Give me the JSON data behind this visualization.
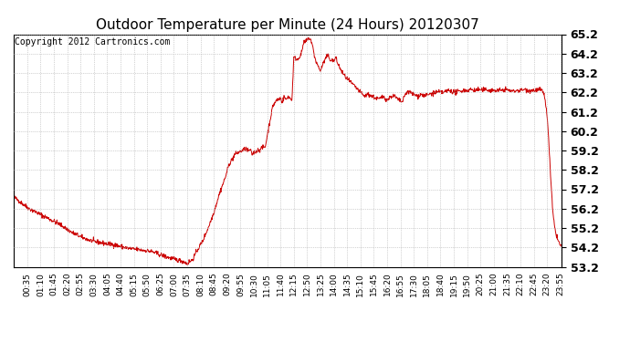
{
  "title": "Outdoor Temperature per Minute (24 Hours) 20120307",
  "copyright_text": "Copyright 2012 Cartronics.com",
  "line_color": "#cc0000",
  "background_color": "#ffffff",
  "plot_background": "#ffffff",
  "ylim": [
    53.2,
    65.2
  ],
  "yticks": [
    53.2,
    54.2,
    55.2,
    56.2,
    57.2,
    58.2,
    59.2,
    60.2,
    61.2,
    62.2,
    63.2,
    64.2,
    65.2
  ],
  "xtick_labels": [
    "00:35",
    "01:10",
    "01:45",
    "02:20",
    "02:55",
    "03:30",
    "04:05",
    "04:40",
    "05:15",
    "05:50",
    "06:25",
    "07:00",
    "07:35",
    "08:10",
    "08:45",
    "09:20",
    "09:55",
    "10:30",
    "11:05",
    "11:40",
    "12:15",
    "12:50",
    "13:25",
    "14:00",
    "14:35",
    "15:10",
    "15:45",
    "16:20",
    "16:55",
    "17:30",
    "18:05",
    "18:40",
    "19:15",
    "19:50",
    "20:25",
    "21:00",
    "21:35",
    "22:10",
    "22:45",
    "23:20",
    "23:55"
  ],
  "grid_color": "#aaaaaa",
  "grid_style": ":",
  "title_fontsize": 11,
  "tick_fontsize": 6.5,
  "ytick_fontsize": 9,
  "copyright_fontsize": 7
}
